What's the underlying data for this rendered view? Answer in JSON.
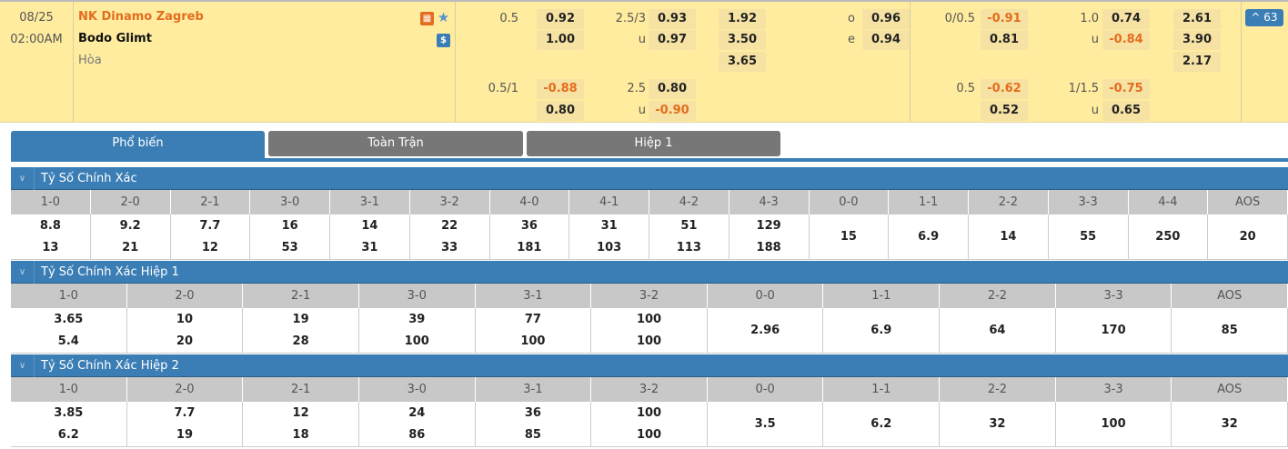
{
  "match": {
    "date": "08/25",
    "time": "02:00AM",
    "home": "NK Dinamo Zagreb",
    "away": "Bodo Glimt",
    "draw": "Hòa",
    "more_count": "^ 63",
    "icons": [
      "stats-icon",
      "star-icon",
      "dollar-icon"
    ],
    "full": {
      "hdp_line": "0.5",
      "hdp_home": "0.92",
      "hdp_away": "1.00",
      "ou_line": "2.5/3",
      "ou_over": "0.93",
      "ou_u": "u",
      "ou_under": "0.97",
      "x1": "1.92",
      "x2": "3.50",
      "xd": "3.65",
      "oe_o": "o",
      "oe_over": "0.96",
      "oe_e": "e",
      "oe_even": "0.94",
      "hdp2_line": "0.5/1",
      "hdp2_home": "-0.88",
      "hdp2_away": "0.80",
      "ou2_line": "2.5",
      "ou2_over": "0.80",
      "ou2_u": "u",
      "ou2_under": "-0.90"
    },
    "half": {
      "hdp_line": "0/0.5",
      "hdp_home": "-0.91",
      "hdp_away": "0.81",
      "ou_line": "1.0",
      "ou_over": "0.74",
      "ou_u": "u",
      "ou_under": "-0.84",
      "x1": "2.61",
      "x2": "3.90",
      "xd": "2.17",
      "hdp2_line": "0.5",
      "hdp2_home": "-0.62",
      "hdp2_away": "0.52",
      "ou2_line": "1/1.5",
      "ou2_over": "-0.75",
      "ou2_u": "u",
      "ou2_under": "0.65"
    }
  },
  "tabs": [
    "Phổ biến",
    "Toàn Trận",
    "Hiệp 1"
  ],
  "sections": [
    {
      "title": "Tỷ Số Chính Xác",
      "cols": [
        "1-0",
        "2-0",
        "2-1",
        "3-0",
        "3-1",
        "3-2",
        "4-0",
        "4-1",
        "4-2",
        "4-3",
        "0-0",
        "1-1",
        "2-2",
        "3-3",
        "4-4",
        "AOS"
      ],
      "top": [
        "8.8",
        "9.2",
        "7.7",
        "16",
        "14",
        "22",
        "36",
        "31",
        "51",
        "129",
        "15",
        "6.9",
        "14",
        "55",
        "250",
        "20"
      ],
      "bottom": [
        "13",
        "21",
        "12",
        "53",
        "31",
        "33",
        "181",
        "103",
        "113",
        "188",
        "",
        "",
        "",
        "",
        "",
        ""
      ]
    },
    {
      "title": "Tỷ Số Chính Xác Hiệp 1",
      "cols": [
        "1-0",
        "2-0",
        "2-1",
        "3-0",
        "3-1",
        "3-2",
        "0-0",
        "1-1",
        "2-2",
        "3-3",
        "AOS"
      ],
      "top": [
        "3.65",
        "10",
        "19",
        "39",
        "77",
        "100",
        "2.96",
        "6.9",
        "64",
        "170",
        "85"
      ],
      "bottom": [
        "5.4",
        "20",
        "28",
        "100",
        "100",
        "100",
        "",
        "",
        "",
        "",
        ""
      ]
    },
    {
      "title": "Tỷ Số Chính Xác Hiệp 2",
      "cols": [
        "1-0",
        "2-0",
        "2-1",
        "3-0",
        "3-1",
        "3-2",
        "0-0",
        "1-1",
        "2-2",
        "3-3",
        "AOS"
      ],
      "top": [
        "3.85",
        "7.7",
        "12",
        "24",
        "36",
        "100",
        "3.5",
        "6.2",
        "32",
        "100",
        "32"
      ],
      "bottom": [
        "6.2",
        "19",
        "18",
        "86",
        "85",
        "100",
        "",
        "",
        "",
        "",
        ""
      ]
    }
  ]
}
